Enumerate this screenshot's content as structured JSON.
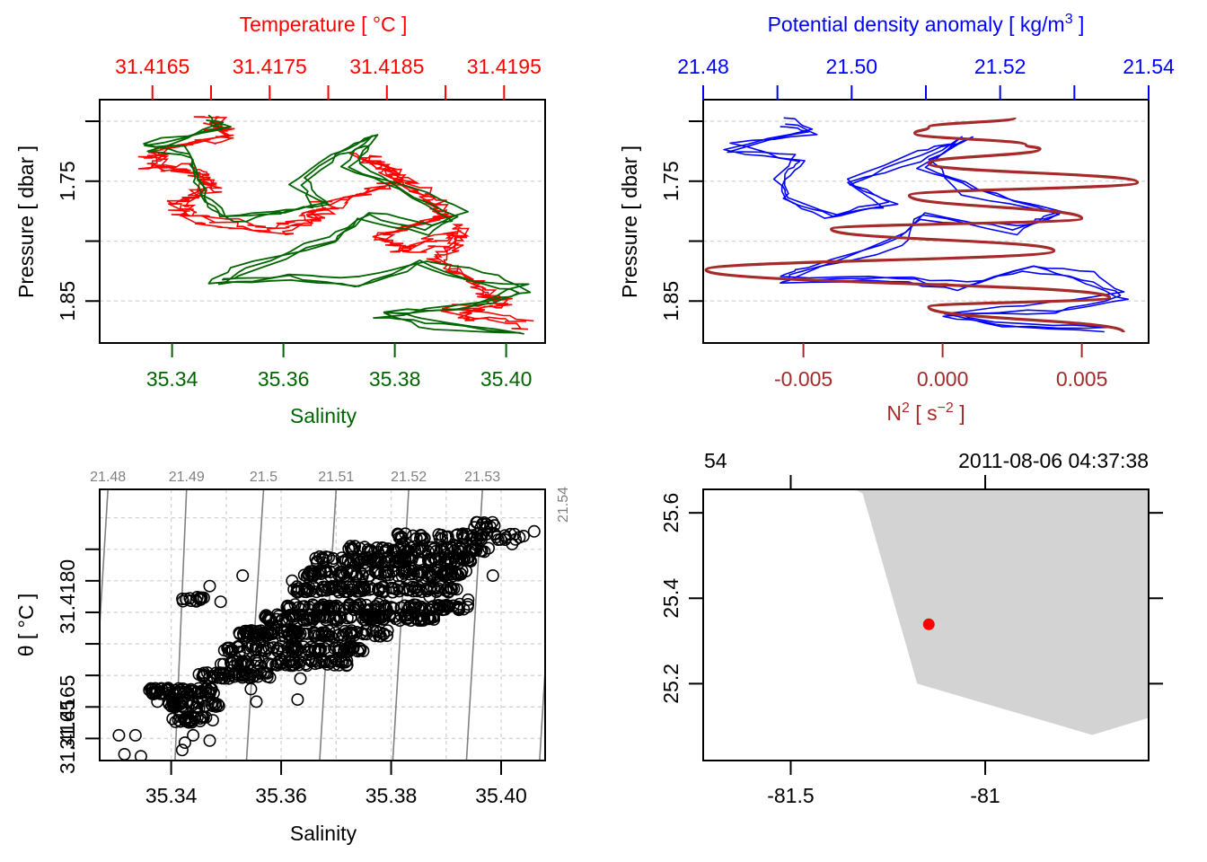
{
  "colors": {
    "temperature": "#ff0000",
    "salinity": "#006400",
    "density": "#0000ff",
    "n2": "#a52a2a",
    "grid": "#d3d3d3",
    "isopycnal": "#808080",
    "land": "#d3d3d3",
    "station": "#ff0000",
    "axis": "#000000"
  },
  "chart_data": [
    {
      "id": "profile-TS",
      "type": "line",
      "top_axis_title": "Temperature [ °C ]",
      "top_ticks": [
        "31.4165",
        "31.4175",
        "31.4185",
        "31.4195"
      ],
      "top_range": [
        31.41605,
        31.41985
      ],
      "bottom_axis_title": "Salinity",
      "bottom_ticks": [
        "35.34",
        "35.36",
        "35.38",
        "35.40"
      ],
      "bottom_range": [
        35.327,
        35.407
      ],
      "ylabel": "Pressure [ dbar ]",
      "y_ticks": [
        "1.75",
        "1.85"
      ],
      "y_tick_values": [
        1.7,
        1.75,
        1.8,
        1.85
      ],
      "y_range": [
        1.885,
        1.682
      ],
      "reversed_y": true,
      "grid": true,
      "series": [
        {
          "name": "Temperature",
          "color_key": "temperature",
          "style": "step",
          "points": [
            [
              31.417,
              1.7
            ],
            [
              31.4172,
              1.71
            ],
            [
              31.4166,
              1.72
            ],
            [
              31.4165,
              1.735
            ],
            [
              31.4169,
              1.74
            ],
            [
              31.417,
              1.755
            ],
            [
              31.4167,
              1.77
            ],
            [
              31.4168,
              1.78
            ],
            [
              31.4175,
              1.79
            ],
            [
              31.4178,
              1.78
            ],
            [
              31.418,
              1.77
            ],
            [
              31.4186,
              1.75
            ],
            [
              31.4183,
              1.73
            ],
            [
              31.4188,
              1.76
            ],
            [
              31.419,
              1.78
            ],
            [
              31.4184,
              1.8
            ],
            [
              31.4187,
              1.81
            ],
            [
              31.4192,
              1.79
            ],
            [
              31.4189,
              1.82
            ],
            [
              31.4193,
              1.84
            ],
            [
              31.4195,
              1.85
            ],
            [
              31.419,
              1.86
            ],
            [
              31.4197,
              1.87
            ]
          ]
        },
        {
          "name": "Salinity",
          "color_key": "salinity",
          "style": "smooth",
          "points": [
            [
              35.346,
              1.7
            ],
            [
              35.35,
              1.705
            ],
            [
              35.335,
              1.72
            ],
            [
              35.342,
              1.725
            ],
            [
              35.345,
              1.745
            ],
            [
              35.346,
              1.765
            ],
            [
              35.35,
              1.782
            ],
            [
              35.36,
              1.775
            ],
            [
              35.366,
              1.77
            ],
            [
              35.362,
              1.75
            ],
            [
              35.37,
              1.73
            ],
            [
              35.376,
              1.715
            ],
            [
              35.372,
              1.735
            ],
            [
              35.382,
              1.76
            ],
            [
              35.392,
              1.78
            ],
            [
              35.386,
              1.79
            ],
            [
              35.375,
              1.78
            ],
            [
              35.368,
              1.8
            ],
            [
              35.352,
              1.825
            ],
            [
              35.348,
              1.835
            ],
            [
              35.36,
              1.83
            ],
            [
              35.374,
              1.835
            ],
            [
              35.385,
              1.82
            ],
            [
              35.395,
              1.83
            ],
            [
              35.404,
              1.84
            ],
            [
              35.394,
              1.855
            ],
            [
              35.378,
              1.86
            ],
            [
              35.386,
              1.87
            ],
            [
              35.402,
              1.874
            ]
          ]
        }
      ]
    },
    {
      "id": "profile-density-N2",
      "type": "line",
      "top_axis_title": "Potential density anomaly [ kg/m3 ]",
      "top_ticks": [
        "21.48",
        "21.50",
        "21.52",
        "21.54"
      ],
      "top_tick_values": [
        21.48,
        21.49,
        21.5,
        21.51,
        21.52,
        21.53,
        21.54
      ],
      "top_range": [
        21.48,
        21.54
      ],
      "bottom_axis_title": "N2 [ s-2 ]",
      "bottom_ticks": [
        "-0.005",
        "0.000",
        "0.005"
      ],
      "bottom_range": [
        -0.0086,
        0.0074
      ],
      "ylabel": "Pressure [ dbar ]",
      "y_ticks": [
        "1.75",
        "1.85"
      ],
      "y_tick_values": [
        1.7,
        1.75,
        1.8,
        1.85
      ],
      "y_range": [
        1.885,
        1.682
      ],
      "reversed_y": true,
      "grid": true,
      "series": [
        {
          "name": "Potential density anomaly",
          "color_key": "density",
          "axis": "top",
          "points": [
            [
              21.491,
              1.7
            ],
            [
              21.494,
              1.71
            ],
            [
              21.483,
              1.72
            ],
            [
              21.493,
              1.73
            ],
            [
              21.49,
              1.745
            ],
            [
              21.491,
              1.765
            ],
            [
              21.497,
              1.777
            ],
            [
              21.505,
              1.77
            ],
            [
              21.5,
              1.75
            ],
            [
              21.508,
              1.73
            ],
            [
              21.515,
              1.715
            ],
            [
              21.51,
              1.735
            ],
            [
              21.516,
              1.76
            ],
            [
              21.527,
              1.78
            ],
            [
              21.522,
              1.79
            ],
            [
              21.51,
              1.78
            ],
            [
              21.506,
              1.8
            ],
            [
              21.493,
              1.825
            ],
            [
              21.49,
              1.832
            ],
            [
              21.505,
              1.83
            ],
            [
              21.515,
              1.836
            ],
            [
              21.524,
              1.82
            ],
            [
              21.532,
              1.83
            ],
            [
              21.537,
              1.845
            ],
            [
              21.528,
              1.855
            ],
            [
              21.512,
              1.862
            ],
            [
              21.52,
              1.87
            ],
            [
              21.534,
              1.874
            ]
          ]
        },
        {
          "name": "N2",
          "color_key": "n2",
          "axis": "bottom",
          "points": [
            [
              0.0026,
              1.697
            ],
            [
              -0.0005,
              1.705
            ],
            [
              -0.001,
              1.71
            ],
            [
              0.003,
              1.72
            ],
            [
              0.0035,
              1.723
            ],
            [
              -0.0005,
              1.735
            ],
            [
              0.007,
              1.751
            ],
            [
              -0.0012,
              1.762
            ],
            [
              0.005,
              1.781
            ],
            [
              -0.004,
              1.79
            ],
            [
              0.004,
              1.808
            ],
            [
              -0.0085,
              1.824
            ],
            [
              0.006,
              1.847
            ],
            [
              -0.0005,
              1.855
            ],
            [
              0.0065,
              1.876
            ]
          ]
        }
      ]
    },
    {
      "id": "TS-diagram",
      "type": "scatter",
      "xlabel": "Salinity",
      "x_ticks": [
        "35.34",
        "35.36",
        "35.38",
        "35.40"
      ],
      "x_range": [
        35.327,
        35.408
      ],
      "ylabel": "θ [ °C ]",
      "y_ticks": [
        "31.4165",
        "31.4180"
      ],
      "y_tick_values": [
        31.4162,
        31.4165,
        31.4168,
        31.4171,
        31.4174,
        31.4177,
        31.418,
        31.4183
      ],
      "y_range": [
        31.41599,
        31.41857
      ],
      "grid": true,
      "isopycnal_labels": [
        "21.48",
        "21.49",
        "21.5",
        "21.51",
        "21.52",
        "21.53",
        "21.54"
      ],
      "isopycnal_bottom_salinity": [
        35.3255,
        35.3407,
        35.3537,
        35.367,
        35.3803,
        35.3937,
        35.407
      ],
      "isopycnal_top_salinity": [
        35.3285,
        35.3428,
        35.3568,
        35.37,
        35.3832,
        35.3966,
        35.41
      ],
      "marker": "open-circle",
      "clusters": [
        {
          "s": [
            35.336,
            35.348
          ],
          "t": 31.41665,
          "n": 60
        },
        {
          "s": [
            35.339,
            35.349
          ],
          "t": 31.41652,
          "n": 40
        },
        {
          "s": [
            35.34,
            35.348
          ],
          "t": 31.41638,
          "n": 25
        },
        {
          "s": [
            35.345,
            35.358
          ],
          "t": 31.4168,
          "n": 50
        },
        {
          "s": [
            35.349,
            35.372
          ],
          "t": 31.41692,
          "n": 70
        },
        {
          "s": [
            35.349,
            35.375
          ],
          "t": 31.41705,
          "n": 90
        },
        {
          "s": [
            35.352,
            35.38
          ],
          "t": 31.4172,
          "n": 110
        },
        {
          "s": [
            35.357,
            35.388
          ],
          "t": 31.41735,
          "n": 120
        },
        {
          "s": [
            35.361,
            35.394
          ],
          "t": 31.41745,
          "n": 110
        },
        {
          "s": [
            35.362,
            35.392
          ],
          "t": 31.41762,
          "n": 110
        },
        {
          "s": [
            35.364,
            35.394
          ],
          "t": 31.41777,
          "n": 110
        },
        {
          "s": [
            35.366,
            35.395
          ],
          "t": 31.4179,
          "n": 100
        },
        {
          "s": [
            35.372,
            35.398
          ],
          "t": 31.418,
          "n": 70
        },
        {
          "s": [
            35.381,
            35.405
          ],
          "t": 31.41812,
          "n": 55
        },
        {
          "s": [
            35.395,
            35.399
          ],
          "t": 31.41823,
          "n": 12
        },
        {
          "s": [
            35.342,
            35.346
          ],
          "t": 31.41752,
          "n": 14
        }
      ],
      "outliers": [
        [
          35.3305,
          31.41623
        ],
        [
          35.3335,
          31.41623
        ],
        [
          35.3315,
          31.41605
        ],
        [
          35.3345,
          31.41603
        ],
        [
          35.344,
          31.41623
        ],
        [
          35.347,
          31.41618
        ],
        [
          35.3425,
          31.41616
        ],
        [
          35.342,
          31.41609
        ],
        [
          35.3555,
          31.41655
        ],
        [
          35.3545,
          31.41667
        ],
        [
          35.3375,
          31.41655
        ],
        [
          35.3505,
          31.41677
        ],
        [
          35.3635,
          31.41677
        ],
        [
          35.362,
          31.4169
        ],
        [
          35.36,
          31.41695
        ],
        [
          35.363,
          31.41657
        ],
        [
          35.366,
          31.4172
        ],
        [
          35.368,
          31.41735
        ],
        [
          35.37,
          31.41695
        ],
        [
          35.372,
          31.4169
        ],
        [
          35.378,
          31.4175
        ],
        [
          35.38,
          31.41745
        ],
        [
          35.383,
          31.41735
        ],
        [
          35.39,
          31.41795
        ],
        [
          35.392,
          31.41795
        ],
        [
          35.387,
          31.41755
        ],
        [
          35.394,
          31.41752
        ],
        [
          35.3985,
          31.41775
        ],
        [
          35.402,
          31.41805
        ],
        [
          35.3955,
          31.41804
        ],
        [
          35.406,
          31.41817
        ],
        [
          35.347,
          31.41765
        ],
        [
          35.353,
          31.41775
        ],
        [
          35.362,
          31.4177
        ],
        [
          35.349,
          31.4175
        ],
        [
          35.382,
          31.41805
        ]
      ]
    },
    {
      "id": "station-map",
      "type": "scatter",
      "title_left": "54",
      "title_right": "2011-08-06 04:37:38",
      "x_ticks": [
        "-81.5",
        "-81"
      ],
      "x_tick_values": [
        -81.5,
        -81.0
      ],
      "x_range": [
        -81.725,
        -80.58
      ],
      "y_ticks": [
        "25.2",
        "25.4",
        "25.6"
      ],
      "y_tick_values": [
        25.2,
        25.4,
        25.6
      ],
      "y_range": [
        25.02,
        25.655
      ],
      "land_polygon": [
        [
          -81.335,
          25.655
        ],
        [
          -81.315,
          25.645
        ],
        [
          -81.175,
          25.2
        ],
        [
          -80.725,
          25.08
        ],
        [
          -80.58,
          25.12
        ],
        [
          -80.58,
          25.655
        ]
      ],
      "station": {
        "lon": -81.145,
        "lat": 25.339
      }
    }
  ]
}
